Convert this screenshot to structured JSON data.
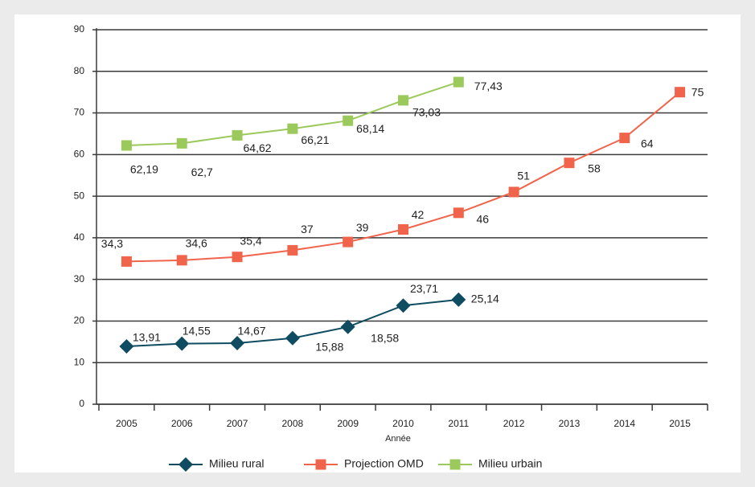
{
  "chart_data": {
    "type": "line",
    "x_label": "Année",
    "categories": [
      "2005",
      "2006",
      "2007",
      "2008",
      "2009",
      "2010",
      "2011",
      "2012",
      "2013",
      "2014",
      "2015"
    ],
    "series": [
      {
        "name": "Milieu rural",
        "color": "#0f4c61",
        "values": [
          13.91,
          14.55,
          14.67,
          15.88,
          18.58,
          23.71,
          25.14,
          null,
          null,
          null,
          null
        ],
        "value_labels": [
          "13,91",
          "14,55",
          "14,67",
          "15,88",
          "18,58",
          "23,71",
          "25,14",
          null,
          null,
          null,
          null
        ]
      },
      {
        "name": "Projection OMD",
        "color": "#f0644b",
        "values": [
          34.3,
          34.6,
          35.4,
          37,
          39,
          42,
          46,
          51,
          58,
          64,
          75
        ],
        "value_labels": [
          "34,3",
          "34,6",
          "35,4",
          "37",
          "39",
          "42",
          "46",
          "51",
          "58",
          "64",
          "75"
        ]
      },
      {
        "name": "Milieu urbain",
        "color": "#9cc95b",
        "values": [
          62.19,
          62.7,
          64.62,
          66.21,
          68.14,
          73.03,
          77.43,
          null,
          null,
          null,
          null
        ],
        "value_labels": [
          "62,19",
          "62,7",
          "64,62",
          "66,21",
          "68,14",
          "73,03",
          "77,43",
          null,
          null,
          null,
          null
        ]
      }
    ],
    "ylim": [
      0,
      90
    ],
    "yticks": [
      0,
      10,
      20,
      30,
      40,
      50,
      60,
      70,
      80,
      90
    ],
    "grid": true,
    "legend": "bottom"
  }
}
